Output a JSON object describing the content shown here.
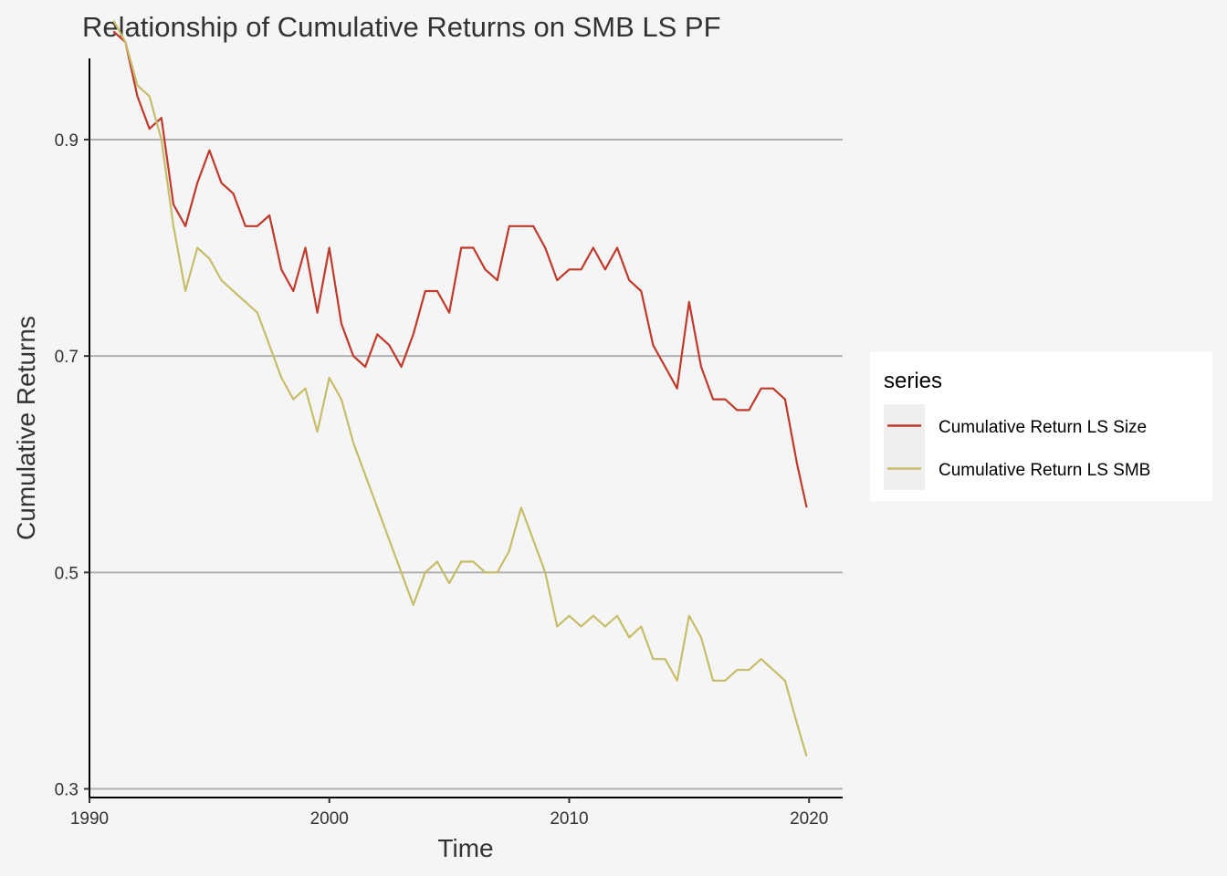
{
  "chart_data": {
    "type": "line",
    "title": "Relationship of Cumulative Returns on SMB LS PF",
    "xlabel": "Time",
    "ylabel": "Cumulative Returns",
    "xlim": [
      1990.0,
      2021.4
    ],
    "ylim": [
      0.292,
      0.975
    ],
    "x_ticks": [
      1990,
      2000,
      2010,
      2020
    ],
    "x_tick_labels": [
      "1990",
      "2000",
      "2010",
      "2020"
    ],
    "y_ticks": [
      0.3,
      0.5,
      0.7,
      0.9
    ],
    "y_tick_labels": [
      "0.3",
      "0.5",
      "0.7",
      "0.9"
    ],
    "grid": "horizontal major",
    "legend": {
      "title": "series",
      "placement": "right"
    },
    "series": [
      {
        "name": "Cumulative Return LS Size",
        "color": "#c0392b",
        "x": [
          1991.0,
          1991.5,
          1992.0,
          1992.5,
          1993.0,
          1993.5,
          1994.0,
          1994.5,
          1995.0,
          1995.5,
          1996.0,
          1996.5,
          1997.0,
          1997.5,
          1998.0,
          1998.5,
          1999.0,
          1999.5,
          2000.0,
          2000.5,
          2001.0,
          2001.5,
          2002.0,
          2002.5,
          2003.0,
          2003.5,
          2004.0,
          2004.5,
          2005.0,
          2005.5,
          2006.0,
          2006.5,
          2007.0,
          2007.5,
          2008.0,
          2008.5,
          2009.0,
          2009.5,
          2010.0,
          2010.5,
          2011.0,
          2011.5,
          2012.0,
          2012.5,
          2013.0,
          2013.5,
          2014.0,
          2014.5,
          2015.0,
          2015.5,
          2016.0,
          2016.5,
          2017.0,
          2017.5,
          2018.0,
          2018.5,
          2019.0,
          2019.5,
          2019.9
        ],
        "y": [
          1.0,
          0.99,
          0.94,
          0.91,
          0.92,
          0.84,
          0.82,
          0.86,
          0.89,
          0.86,
          0.85,
          0.82,
          0.82,
          0.83,
          0.78,
          0.76,
          0.8,
          0.74,
          0.8,
          0.73,
          0.7,
          0.69,
          0.72,
          0.71,
          0.69,
          0.72,
          0.76,
          0.76,
          0.74,
          0.8,
          0.8,
          0.78,
          0.77,
          0.82,
          0.82,
          0.82,
          0.8,
          0.77,
          0.78,
          0.78,
          0.8,
          0.78,
          0.8,
          0.77,
          0.76,
          0.71,
          0.69,
          0.67,
          0.75,
          0.69,
          0.66,
          0.66,
          0.65,
          0.65,
          0.67,
          0.67,
          0.66,
          0.6,
          0.56
        ]
      },
      {
        "name": "Cumulative Return LS SMB",
        "color": "#c6bd6a",
        "x": [
          1991.0,
          1991.5,
          1992.0,
          1992.5,
          1993.0,
          1993.5,
          1994.0,
          1994.5,
          1995.0,
          1995.5,
          1996.0,
          1996.5,
          1997.0,
          1997.5,
          1998.0,
          1998.5,
          1999.0,
          1999.5,
          2000.0,
          2000.5,
          2001.0,
          2001.5,
          2002.0,
          2002.5,
          2003.0,
          2003.5,
          2004.0,
          2004.5,
          2005.0,
          2005.5,
          2006.0,
          2006.5,
          2007.0,
          2007.5,
          2008.0,
          2008.5,
          2009.0,
          2009.5,
          2010.0,
          2010.5,
          2011.0,
          2011.5,
          2012.0,
          2012.5,
          2013.0,
          2013.5,
          2014.0,
          2014.5,
          2015.0,
          2015.5,
          2016.0,
          2016.5,
          2017.0,
          2017.5,
          2018.0,
          2018.5,
          2019.0,
          2019.5,
          2019.9
        ],
        "y": [
          1.01,
          0.99,
          0.95,
          0.94,
          0.9,
          0.82,
          0.76,
          0.8,
          0.79,
          0.77,
          0.76,
          0.75,
          0.74,
          0.71,
          0.68,
          0.66,
          0.67,
          0.63,
          0.68,
          0.66,
          0.62,
          0.59,
          0.56,
          0.53,
          0.5,
          0.47,
          0.5,
          0.51,
          0.49,
          0.51,
          0.51,
          0.5,
          0.5,
          0.52,
          0.56,
          0.53,
          0.5,
          0.45,
          0.46,
          0.45,
          0.46,
          0.45,
          0.46,
          0.44,
          0.45,
          0.42,
          0.42,
          0.4,
          0.46,
          0.44,
          0.4,
          0.4,
          0.41,
          0.41,
          0.42,
          0.41,
          0.4,
          0.36,
          0.33
        ]
      }
    ]
  }
}
